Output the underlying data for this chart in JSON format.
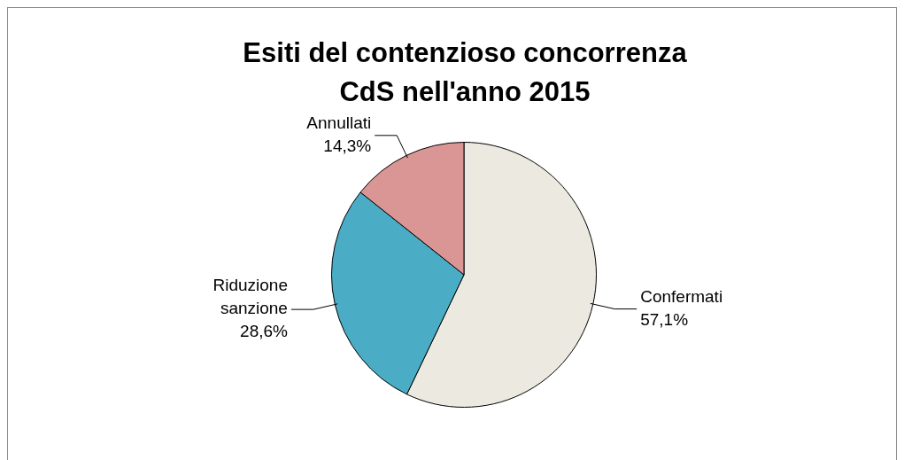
{
  "chart_data": {
    "type": "pie",
    "title": "Esiti del contenzioso concorrenza CdS nell'anno 2015",
    "categories": [
      "Confermati",
      "Riduzione sanzione",
      "Annullati"
    ],
    "values": [
      57.1,
      28.6,
      14.3
    ],
    "colors": [
      "#ece9e0",
      "#4bacc6",
      "#d99694"
    ],
    "value_labels": [
      "57,1%",
      "28,6%",
      "14,3%"
    ],
    "legend": false
  }
}
